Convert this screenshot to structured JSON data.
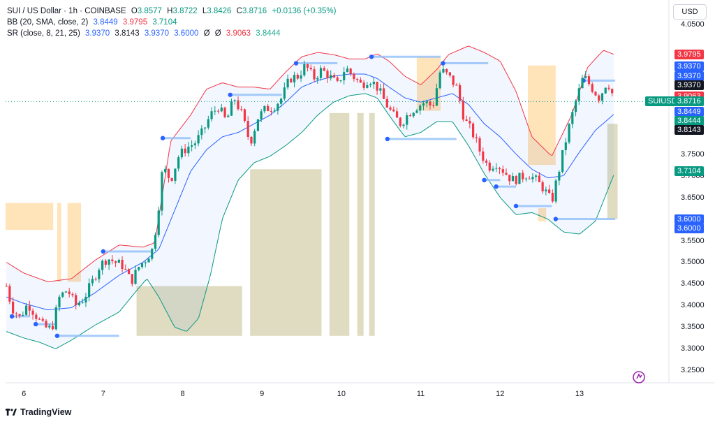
{
  "legend": {
    "title": "SUI / US Dollar · 1h · COINBASE",
    "o_label": "O",
    "o": "3.8577",
    "h_label": "H",
    "h": "3.8722",
    "l_label": "L",
    "l": "3.8426",
    "c_label": "C",
    "c": "3.8716",
    "change": "+0.0136 (+0.35%)",
    "bb_label": "BB (20, SMA, close, 2)",
    "bb_basis": "3.8449",
    "bb_upper": "3.9795",
    "bb_lower": "3.7104",
    "sr_label": "SR (close, 8, 21, 25)",
    "sr_v1": "3.9370",
    "sr_v2": "3.8143",
    "sr_v3": "3.9370",
    "sr_v4": "3.6000",
    "sr_na1": "Ø",
    "sr_na2": "Ø",
    "sr_v5": "3.9063",
    "sr_v6": "3.8444"
  },
  "currency_button": "USD",
  "brand": "TradingView",
  "colors": {
    "up": "#089981",
    "down": "#f23645",
    "bb_upper": "#f23645",
    "bb_basis": "#2962ff",
    "bb_lower": "#089981",
    "bb_fill": "#2962ff",
    "sr_zone": "#c9c59a",
    "supply_zone": "#ffcc80"
  },
  "price_tags": [
    {
      "label": "3.9795",
      "value": 3.9795,
      "color": "#f23645"
    },
    {
      "label": "3.9370",
      "value": 3.953,
      "color": "#2962ff"
    },
    {
      "label": "3.9370",
      "value": 3.931,
      "color": "#2962ff"
    },
    {
      "label": "3.9370",
      "value": 3.909,
      "color": "#131722"
    },
    {
      "label": "3.9063",
      "value": 3.883,
      "color": "#f23645"
    },
    {
      "label": "SUIUSD",
      "value": 3.8716,
      "color": "#089981",
      "is_symbol": true
    },
    {
      "label": "3.8716",
      "value": 3.8716,
      "color": "#089981"
    },
    {
      "label": "3.8449",
      "value": 3.8475,
      "color": "#2962ff"
    },
    {
      "label": "3.8444",
      "value": 3.8268,
      "color": "#089981"
    },
    {
      "label": "3.8143",
      "value": 3.8063,
      "color": "#131722"
    },
    {
      "label": "3.7104",
      "value": 3.7104,
      "color": "#089981"
    },
    {
      "label": "3.6000",
      "value": 3.6,
      "color": "#2962ff"
    },
    {
      "label": "3.6000",
      "value": 3.579,
      "color": "#2962ff"
    }
  ],
  "chart_data": {
    "type": "candlestick",
    "title": "SUI / US Dollar · 1h · COINBASE",
    "y_ticks": [
      4.05,
      3.75,
      3.7,
      3.65,
      3.55,
      3.5,
      3.45,
      3.4,
      3.35,
      3.3,
      3.25
    ],
    "y_tick_labels": [
      "4.0500",
      "3.7500",
      "3.7000",
      "3.6500",
      "3.5500",
      "3.5000",
      "3.4500",
      "3.4000",
      "3.3500",
      "3.3000",
      "3.2500"
    ],
    "x_ticks": [
      6,
      7,
      8,
      9,
      10,
      11,
      12,
      13
    ],
    "x_tick_labels": [
      "6",
      "7",
      "8",
      "9",
      "10",
      "11",
      "12",
      "13"
    ],
    "x_range": [
      5.77,
      13.88
    ],
    "y_range": [
      3.2215,
      4.061
    ],
    "current_price": 3.8716,
    "close_waypoints": [
      [
        5.78,
        3.445
      ],
      [
        5.85,
        3.395
      ],
      [
        5.95,
        3.372
      ],
      [
        6.05,
        3.405
      ],
      [
        6.15,
        3.378
      ],
      [
        6.25,
        3.35
      ],
      [
        6.35,
        3.345
      ],
      [
        6.45,
        3.42
      ],
      [
        6.55,
        3.437
      ],
      [
        6.65,
        3.4
      ],
      [
        6.75,
        3.415
      ],
      [
        6.85,
        3.45
      ],
      [
        6.95,
        3.49
      ],
      [
        7.05,
        3.51
      ],
      [
        7.15,
        3.5
      ],
      [
        7.25,
        3.492
      ],
      [
        7.35,
        3.455
      ],
      [
        7.45,
        3.49
      ],
      [
        7.55,
        3.51
      ],
      [
        7.62,
        3.53
      ],
      [
        7.68,
        3.6
      ],
      [
        7.75,
        3.72
      ],
      [
        7.85,
        3.69
      ],
      [
        7.95,
        3.745
      ],
      [
        8.05,
        3.765
      ],
      [
        8.15,
        3.775
      ],
      [
        8.25,
        3.8
      ],
      [
        8.35,
        3.84
      ],
      [
        8.45,
        3.86
      ],
      [
        8.55,
        3.825
      ],
      [
        8.65,
        3.88
      ],
      [
        8.75,
        3.84
      ],
      [
        8.85,
        3.775
      ],
      [
        8.95,
        3.835
      ],
      [
        9.05,
        3.855
      ],
      [
        9.15,
        3.86
      ],
      [
        9.25,
        3.88
      ],
      [
        9.35,
        3.925
      ],
      [
        9.45,
        3.93
      ],
      [
        9.55,
        3.955
      ],
      [
        9.65,
        3.925
      ],
      [
        9.75,
        3.945
      ],
      [
        9.85,
        3.93
      ],
      [
        9.95,
        3.91
      ],
      [
        10.05,
        3.95
      ],
      [
        10.15,
        3.93
      ],
      [
        10.25,
        3.91
      ],
      [
        10.35,
        3.925
      ],
      [
        10.45,
        3.905
      ],
      [
        10.55,
        3.87
      ],
      [
        10.65,
        3.84
      ],
      [
        10.75,
        3.82
      ],
      [
        10.85,
        3.845
      ],
      [
        10.95,
        3.86
      ],
      [
        11.05,
        3.87
      ],
      [
        11.15,
        3.86
      ],
      [
        11.25,
        3.945
      ],
      [
        11.35,
        3.93
      ],
      [
        11.45,
        3.905
      ],
      [
        11.55,
        3.83
      ],
      [
        11.65,
        3.8
      ],
      [
        11.75,
        3.755
      ],
      [
        11.85,
        3.72
      ],
      [
        11.95,
        3.73
      ],
      [
        12.05,
        3.71
      ],
      [
        12.15,
        3.69
      ],
      [
        12.25,
        3.695
      ],
      [
        12.35,
        3.705
      ],
      [
        12.45,
        3.69
      ],
      [
        12.55,
        3.67
      ],
      [
        12.65,
        3.64
      ],
      [
        12.75,
        3.72
      ],
      [
        12.85,
        3.8
      ],
      [
        12.95,
        3.87
      ],
      [
        13.05,
        3.93
      ],
      [
        13.15,
        3.905
      ],
      [
        13.25,
        3.88
      ],
      [
        13.35,
        3.92
      ],
      [
        13.45,
        3.8716
      ]
    ],
    "bollinger_bands": {
      "period": 20,
      "source": "close",
      "stdev": 2,
      "upper_last": 3.9795,
      "basis_last": 3.8449,
      "lower_last": 3.7104,
      "upper": [
        [
          5.78,
          3.5
        ],
        [
          6.0,
          3.475
        ],
        [
          6.3,
          3.455
        ],
        [
          6.6,
          3.462
        ],
        [
          6.9,
          3.505
        ],
        [
          7.2,
          3.54
        ],
        [
          7.5,
          3.535
        ],
        [
          7.65,
          3.545
        ],
        [
          7.85,
          3.78
        ],
        [
          8.1,
          3.84
        ],
        [
          8.3,
          3.9
        ],
        [
          8.5,
          3.915
        ],
        [
          8.7,
          3.905
        ],
        [
          8.9,
          3.905
        ],
        [
          9.1,
          3.9
        ],
        [
          9.3,
          3.94
        ],
        [
          9.5,
          3.975
        ],
        [
          9.7,
          3.985
        ],
        [
          9.9,
          3.98
        ],
        [
          10.1,
          3.97
        ],
        [
          10.3,
          3.97
        ],
        [
          10.45,
          3.982
        ],
        [
          10.6,
          3.965
        ],
        [
          10.8,
          3.93
        ],
        [
          11.0,
          3.91
        ],
        [
          11.2,
          3.945
        ],
        [
          11.35,
          3.98
        ],
        [
          11.6,
          4.0
        ],
        [
          11.8,
          3.985
        ],
        [
          12.0,
          3.965
        ],
        [
          12.2,
          3.895
        ],
        [
          12.4,
          3.79
        ],
        [
          12.65,
          3.745
        ],
        [
          12.9,
          3.84
        ],
        [
          13.1,
          3.95
        ],
        [
          13.3,
          3.99
        ],
        [
          13.45,
          3.9795
        ]
      ],
      "basis": [
        [
          5.78,
          3.42
        ],
        [
          6.0,
          3.405
        ],
        [
          6.3,
          3.39
        ],
        [
          6.6,
          3.395
        ],
        [
          6.9,
          3.43
        ],
        [
          7.2,
          3.47
        ],
        [
          7.5,
          3.5
        ],
        [
          7.7,
          3.53
        ],
        [
          7.9,
          3.62
        ],
        [
          8.1,
          3.71
        ],
        [
          8.3,
          3.76
        ],
        [
          8.5,
          3.79
        ],
        [
          8.7,
          3.8
        ],
        [
          8.9,
          3.82
        ],
        [
          9.1,
          3.84
        ],
        [
          9.3,
          3.87
        ],
        [
          9.5,
          3.905
        ],
        [
          9.7,
          3.92
        ],
        [
          9.9,
          3.93
        ],
        [
          10.1,
          3.935
        ],
        [
          10.3,
          3.935
        ],
        [
          10.45,
          3.925
        ],
        [
          10.6,
          3.905
        ],
        [
          10.8,
          3.88
        ],
        [
          11.0,
          3.87
        ],
        [
          11.2,
          3.88
        ],
        [
          11.4,
          3.89
        ],
        [
          11.6,
          3.865
        ],
        [
          11.8,
          3.82
        ],
        [
          12.0,
          3.79
        ],
        [
          12.2,
          3.75
        ],
        [
          12.4,
          3.715
        ],
        [
          12.6,
          3.695
        ],
        [
          12.8,
          3.7
        ],
        [
          13.0,
          3.755
        ],
        [
          13.2,
          3.805
        ],
        [
          13.45,
          3.8449
        ]
      ],
      "lower": [
        [
          5.78,
          3.34
        ],
        [
          6.0,
          3.325
        ],
        [
          6.2,
          3.315
        ],
        [
          6.4,
          3.3
        ],
        [
          6.6,
          3.32
        ],
        [
          6.9,
          3.355
        ],
        [
          7.2,
          3.385
        ],
        [
          7.4,
          3.43
        ],
        [
          7.55,
          3.462
        ],
        [
          7.7,
          3.42
        ],
        [
          7.9,
          3.35
        ],
        [
          8.05,
          3.34
        ],
        [
          8.2,
          3.37
        ],
        [
          8.35,
          3.47
        ],
        [
          8.5,
          3.6
        ],
        [
          8.7,
          3.69
        ],
        [
          8.9,
          3.73
        ],
        [
          9.1,
          3.745
        ],
        [
          9.3,
          3.77
        ],
        [
          9.5,
          3.8
        ],
        [
          9.7,
          3.84
        ],
        [
          9.9,
          3.87
        ],
        [
          10.1,
          3.885
        ],
        [
          10.3,
          3.89
        ],
        [
          10.45,
          3.88
        ],
        [
          10.6,
          3.84
        ],
        [
          10.8,
          3.79
        ],
        [
          11.0,
          3.8
        ],
        [
          11.2,
          3.825
        ],
        [
          11.4,
          3.825
        ],
        [
          11.6,
          3.77
        ],
        [
          11.8,
          3.705
        ],
        [
          12.0,
          3.65
        ],
        [
          12.2,
          3.61
        ],
        [
          12.4,
          3.615
        ],
        [
          12.6,
          3.6
        ],
        [
          12.8,
          3.57
        ],
        [
          13.0,
          3.565
        ],
        [
          13.2,
          3.595
        ],
        [
          13.45,
          3.7104
        ]
      ]
    },
    "support_resistance": {
      "period_args": "close, 8, 21, 25",
      "levels": [
        {
          "y": 3.375,
          "x_start": 5.85,
          "x_end": 6.08,
          "kind": "support"
        },
        {
          "y": 3.357,
          "x_start": 6.15,
          "x_end": 6.4,
          "kind": "support"
        },
        {
          "y": 3.33,
          "x_start": 6.42,
          "x_end": 7.2,
          "kind": "support"
        },
        {
          "y": 3.525,
          "x_start": 7.0,
          "x_end": 7.62,
          "kind": "resistance"
        },
        {
          "y": 3.787,
          "x_start": 7.75,
          "x_end": 8.1,
          "kind": "resistance"
        },
        {
          "y": 3.887,
          "x_start": 8.6,
          "x_end": 9.25,
          "kind": "resistance"
        },
        {
          "y": 3.96,
          "x_start": 9.43,
          "x_end": 9.95,
          "kind": "resistance"
        },
        {
          "y": 3.975,
          "x_start": 10.38,
          "x_end": 11.25,
          "kind": "resistance"
        },
        {
          "y": 3.785,
          "x_start": 10.58,
          "x_end": 11.45,
          "kind": "support"
        },
        {
          "y": 3.96,
          "x_start": 11.28,
          "x_end": 11.85,
          "kind": "resistance"
        },
        {
          "y": 3.69,
          "x_start": 11.8,
          "x_end": 12.0,
          "kind": "support"
        },
        {
          "y": 3.675,
          "x_start": 11.95,
          "x_end": 12.2,
          "kind": "support"
        },
        {
          "y": 3.63,
          "x_start": 12.2,
          "x_end": 12.65,
          "kind": "support"
        },
        {
          "y": 3.6,
          "x_start": 12.7,
          "x_end": 13.45,
          "kind": "support"
        },
        {
          "y": 3.92,
          "x_start": 13.05,
          "x_end": 13.45,
          "kind": "resistance"
        }
      ]
    },
    "zones": [
      {
        "x_start": 5.77,
        "x_end": 6.37,
        "y_low": 3.575,
        "y_high": 3.637,
        "kind": "supply"
      },
      {
        "x_start": 6.42,
        "x_end": 6.47,
        "y_low": 3.455,
        "y_high": 3.637,
        "kind": "supply"
      },
      {
        "x_start": 6.55,
        "x_end": 6.72,
        "y_low": 3.455,
        "y_high": 3.637,
        "kind": "supply"
      },
      {
        "x_start": 7.42,
        "x_end": 8.75,
        "y_low": 3.33,
        "y_high": 3.445,
        "kind": "demand"
      },
      {
        "x_start": 8.85,
        "x_end": 9.75,
        "y_low": 3.33,
        "y_high": 3.715,
        "kind": "demand"
      },
      {
        "x_start": 9.85,
        "x_end": 10.1,
        "y_low": 3.33,
        "y_high": 3.845,
        "kind": "demand"
      },
      {
        "x_start": 10.2,
        "x_end": 10.28,
        "y_low": 3.33,
        "y_high": 3.845,
        "kind": "demand"
      },
      {
        "x_start": 10.35,
        "x_end": 10.42,
        "y_low": 3.33,
        "y_high": 3.845,
        "kind": "demand"
      },
      {
        "x_start": 10.95,
        "x_end": 11.25,
        "y_low": 3.85,
        "y_high": 3.975,
        "kind": "supply"
      },
      {
        "x_start": 12.35,
        "x_end": 12.7,
        "y_low": 3.725,
        "y_high": 3.955,
        "kind": "supply"
      },
      {
        "x_start": 12.48,
        "x_end": 12.58,
        "y_low": 3.595,
        "y_high": 3.625,
        "kind": "supply"
      },
      {
        "x_start": 13.35,
        "x_end": 13.48,
        "y_low": 3.6,
        "y_high": 3.82,
        "kind": "demand"
      }
    ],
    "volume": []
  }
}
